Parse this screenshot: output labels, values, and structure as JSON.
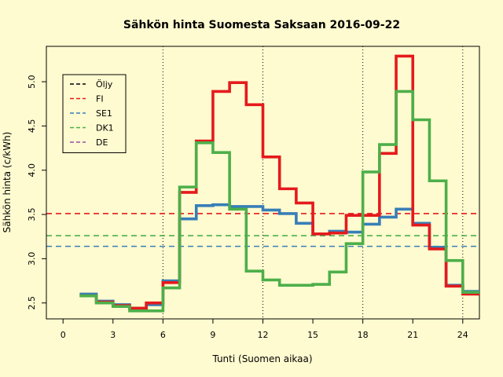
{
  "chart_data": {
    "type": "line",
    "title": "Sähkön hinta Suomesta Saksaan 2016-09-22",
    "xlabel": "Tunti (Suomen aikaa)",
    "ylabel": "Sähkön hinta (c/kWh)",
    "xlim": [
      -1,
      25
    ],
    "ylim": [
      2.32,
      5.4
    ],
    "xticks": [
      "0",
      "3",
      "6",
      "9",
      "12",
      "15",
      "18",
      "21",
      "24"
    ],
    "yticks": [
      "2.5",
      "3.0",
      "3.5",
      "4.0",
      "4.5",
      "5.0"
    ],
    "vlines": [
      6,
      12,
      18,
      24
    ],
    "legend_position": "top-left",
    "legend": [
      {
        "name": "Öljy",
        "color": "#000000"
      },
      {
        "name": "FI",
        "color": "#e41a1c"
      },
      {
        "name": "SE1",
        "color": "#377eb8"
      },
      {
        "name": "DK1",
        "color": "#4daf4a"
      },
      {
        "name": "DE",
        "color": "#984ea3"
      }
    ],
    "hlines": [
      {
        "name": "FI",
        "value": 3.51,
        "color": "#e41a1c"
      },
      {
        "name": "DK1",
        "value": 3.26,
        "color": "#4daf4a"
      },
      {
        "name": "SE1",
        "value": 3.14,
        "color": "#377eb8"
      }
    ],
    "x": [
      1,
      2,
      3,
      4,
      5,
      6,
      7,
      8,
      9,
      10,
      11,
      12,
      13,
      14,
      15,
      16,
      17,
      18,
      19,
      20,
      21,
      22,
      23,
      24,
      25
    ],
    "series": [
      {
        "name": "SE1",
        "color": "#377eb8",
        "values": [
          2.6,
          2.52,
          2.48,
          2.44,
          2.48,
          2.75,
          3.45,
          3.6,
          3.61,
          3.59,
          3.59,
          3.55,
          3.51,
          3.4,
          3.28,
          3.31,
          3.3,
          3.39,
          3.47,
          3.56,
          3.4,
          3.13,
          2.7,
          2.63,
          2.63
        ]
      },
      {
        "name": "FI",
        "color": "#e41a1c",
        "values": [
          2.58,
          2.51,
          2.47,
          2.44,
          2.5,
          2.73,
          3.75,
          4.33,
          4.89,
          4.99,
          4.74,
          4.15,
          3.79,
          3.63,
          3.28,
          3.29,
          3.49,
          3.49,
          4.19,
          5.29,
          3.38,
          3.11,
          2.69,
          2.6,
          2.6
        ]
      },
      {
        "name": "DK1",
        "color": "#4daf4a",
        "values": [
          2.58,
          2.5,
          2.46,
          2.41,
          2.41,
          2.67,
          3.81,
          4.31,
          4.2,
          3.56,
          2.86,
          2.76,
          2.7,
          2.7,
          2.71,
          2.85,
          3.17,
          3.98,
          4.29,
          4.89,
          4.57,
          3.88,
          2.98,
          2.62,
          2.62
        ]
      }
    ]
  }
}
